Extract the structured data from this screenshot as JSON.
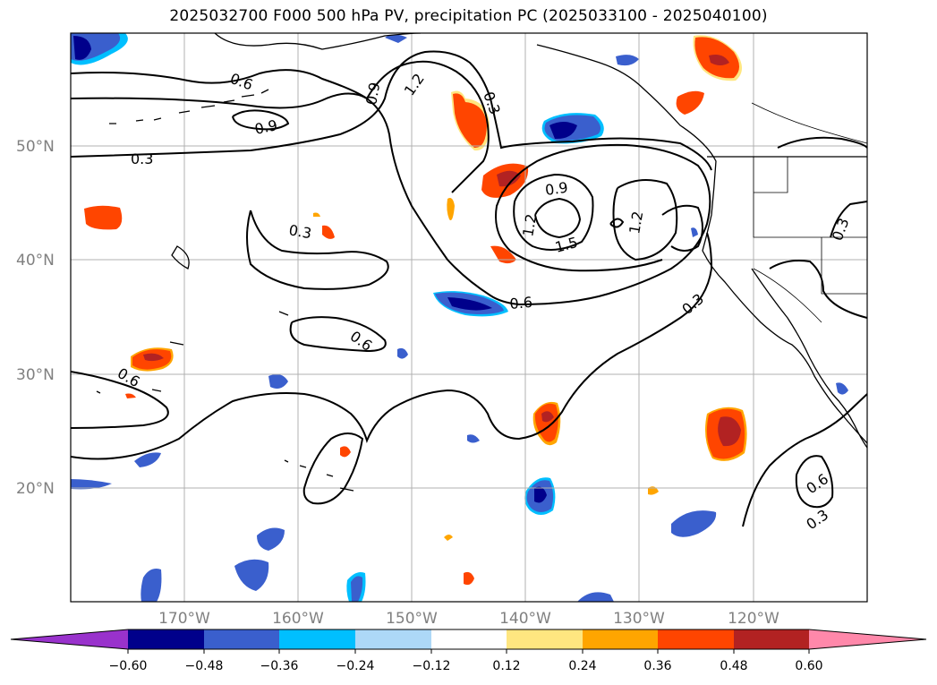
{
  "title": "2025032700 F000 500 hPa PV, precipitation PC (2025033100 - 2025040100)",
  "colors": {
    "neg_060": "#9932CC",
    "neg_048": "#00008B",
    "neg_036": "#3A5FCD",
    "neg_024": "#00BFFF",
    "neg_012": "#ADD8F7",
    "zero": "#FFFFFF",
    "pos_012": "#FFE680",
    "pos_024": "#FFA500",
    "pos_036": "#FF4500",
    "pos_048": "#B22222",
    "pos_060": "#FF88AA",
    "contour": "#000000",
    "grid": "#B0B0B0",
    "axis_label": "#808080"
  },
  "map": {
    "projection": "PlateCarree",
    "lon_range": [
      -180,
      -110
    ],
    "lat_range": [
      10,
      60
    ],
    "lat_labels": [
      "20°N",
      "30°N",
      "40°N",
      "50°N"
    ],
    "lon_labels": [
      "170°W",
      "160°W",
      "150°W",
      "140°W",
      "130°W",
      "120°W"
    ],
    "contour_labels": [
      "0.6",
      "0.9",
      "1.2",
      "0.3",
      "0.9",
      "0.3",
      "0.3",
      "0.9",
      "1.2",
      "1.5",
      "1.2",
      "0.3",
      "0.6",
      "0.3",
      "0.6",
      "0.6",
      "0.6",
      "0.3"
    ]
  },
  "colorbar": {
    "ticks": [
      "−0.60",
      "−0.48",
      "−0.36",
      "−0.24",
      "−0.12",
      "0.12",
      "0.24",
      "0.36",
      "0.48",
      "0.60"
    ],
    "extend": "both"
  }
}
